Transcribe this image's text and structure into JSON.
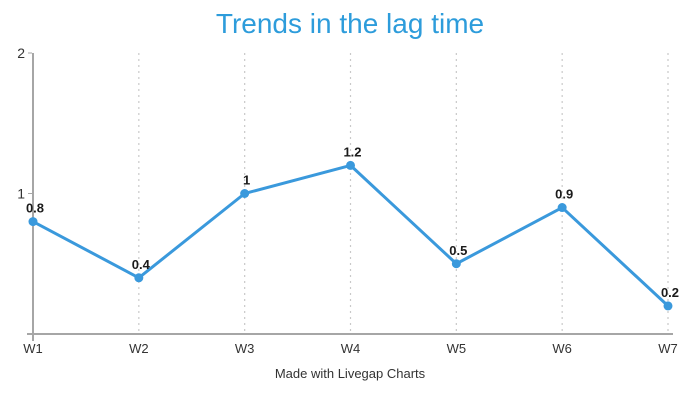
{
  "chart_data": {
    "type": "line",
    "title": "Trends in the lag time",
    "categories": [
      "W1",
      "W2",
      "W3",
      "W4",
      "W5",
      "W6",
      "W7"
    ],
    "series": [
      {
        "name": "lag time",
        "values": [
          0.8,
          0.4,
          1,
          1.2,
          0.5,
          0.9,
          0.2
        ]
      }
    ],
    "point_labels": [
      "0.8",
      "0.4",
      "1",
      "1.2",
      "0.5",
      "0.9",
      "0.2"
    ],
    "xlabel": "",
    "ylabel": "",
    "ylim": [
      0,
      2
    ],
    "yticks": [
      1,
      2
    ],
    "ytick_labels": [
      "1",
      "2"
    ],
    "grid": "vertical-dotted",
    "legend": "none"
  },
  "footer": {
    "text": "Made with Livegap Charts"
  },
  "colors": {
    "title": "#2D9CDB",
    "line": "#3A99DC",
    "point": "#3A99DC",
    "axis": "#A6A6A6",
    "grid": "#C9C9C9",
    "value_label": "#1A1A1A",
    "tick_label": "#333333",
    "footer": "#333333"
  }
}
